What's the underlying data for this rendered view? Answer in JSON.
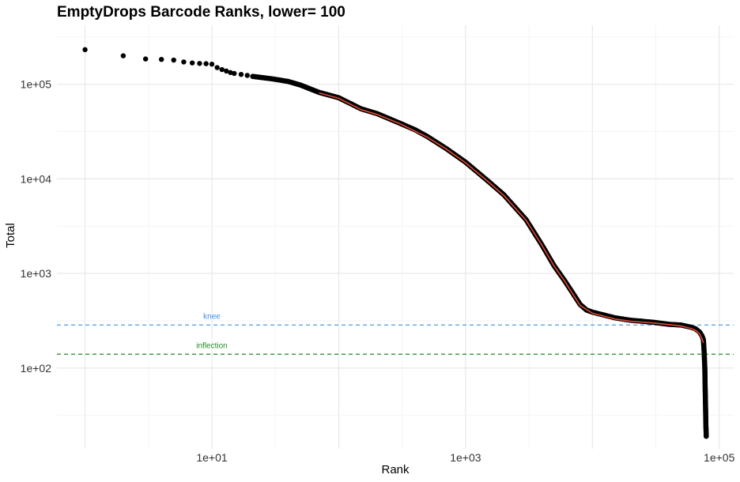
{
  "chart_data": {
    "type": "scatter",
    "title": "EmptyDrops Barcode Ranks, lower= 100",
    "xlabel": "Rank",
    "ylabel": "Total",
    "x_scale": "log10",
    "y_scale": "log10",
    "xlim": [
      0.6,
      130000
    ],
    "ylim": [
      14,
      420000
    ],
    "x_ticks": [
      {
        "value": 10,
        "label": "1e+01"
      },
      {
        "value": 1000,
        "label": "1e+03"
      },
      {
        "value": 100000,
        "label": "1e+05"
      }
    ],
    "y_ticks": [
      {
        "value": 100,
        "label": "1e+02"
      },
      {
        "value": 1000,
        "label": "1e+03"
      },
      {
        "value": 10000,
        "label": "1e+04"
      },
      {
        "value": 100000,
        "label": "1e+05"
      }
    ],
    "grid": true,
    "legend": "none",
    "points_discrete": [
      [
        1,
        232000
      ],
      [
        2,
        200000
      ],
      [
        3,
        185000
      ],
      [
        4,
        183000
      ],
      [
        5,
        180000
      ],
      [
        6,
        172000
      ],
      [
        7,
        168000
      ],
      [
        8,
        166000
      ],
      [
        9,
        165000
      ],
      [
        10,
        163000
      ],
      [
        11,
        150000
      ],
      [
        12,
        143000
      ],
      [
        13,
        138000
      ],
      [
        14,
        133000
      ],
      [
        15,
        130000
      ],
      [
        17,
        127000
      ],
      [
        19,
        124000
      ],
      [
        21,
        121000
      ]
    ],
    "points_dense": [
      [
        21,
        121000
      ],
      [
        30,
        114000
      ],
      [
        40,
        107000
      ],
      [
        50,
        98000
      ],
      [
        70,
        82000
      ],
      [
        100,
        72000
      ],
      [
        150,
        55000
      ],
      [
        200,
        49000
      ],
      [
        300,
        39000
      ],
      [
        400,
        33000
      ],
      [
        500,
        28000
      ],
      [
        700,
        21000
      ],
      [
        1000,
        15000
      ],
      [
        1500,
        9500
      ],
      [
        2000,
        6800
      ],
      [
        3000,
        3700
      ],
      [
        4000,
        2000
      ],
      [
        5000,
        1200
      ],
      [
        6000,
        850
      ],
      [
        7000,
        620
      ],
      [
        8000,
        470
      ],
      [
        9000,
        410
      ],
      [
        10000,
        390
      ],
      [
        15000,
        340
      ],
      [
        20000,
        320
      ],
      [
        30000,
        305
      ],
      [
        40000,
        290
      ],
      [
        50000,
        285
      ],
      [
        60000,
        270
      ],
      [
        65000,
        260
      ],
      [
        70000,
        240
      ],
      [
        73000,
        220
      ],
      [
        75000,
        200
      ],
      [
        76000,
        150
      ],
      [
        77000,
        100
      ],
      [
        77500,
        60
      ],
      [
        78000,
        40
      ],
      [
        78500,
        25
      ],
      [
        79000,
        19
      ]
    ],
    "fitted_curve": {
      "color": "#e24a33",
      "points": [
        [
          70,
          81000
        ],
        [
          100,
          71000
        ],
        [
          150,
          54000
        ],
        [
          200,
          48000
        ],
        [
          300,
          38500
        ],
        [
          500,
          27500
        ],
        [
          700,
          20800
        ],
        [
          1000,
          14800
        ],
        [
          1500,
          9400
        ],
        [
          2000,
          6700
        ],
        [
          3000,
          3650
        ],
        [
          4000,
          1980
        ],
        [
          5000,
          1190
        ],
        [
          6000,
          840
        ],
        [
          7000,
          610
        ],
        [
          8000,
          460
        ],
        [
          10000,
          380
        ],
        [
          15000,
          330
        ],
        [
          20000,
          312
        ],
        [
          30000,
          300
        ],
        [
          40000,
          288
        ],
        [
          50000,
          278
        ],
        [
          60000,
          262
        ],
        [
          65000,
          250
        ],
        [
          70000,
          230
        ],
        [
          73000,
          205
        ],
        [
          75000,
          185
        ]
      ]
    },
    "hlines": [
      {
        "name": "knee",
        "y": 285,
        "color": "#3a8fe8",
        "dash": true
      },
      {
        "name": "inflection",
        "y": 140,
        "color": "#228b22",
        "dash": true
      }
    ],
    "point_color": "#000000"
  }
}
